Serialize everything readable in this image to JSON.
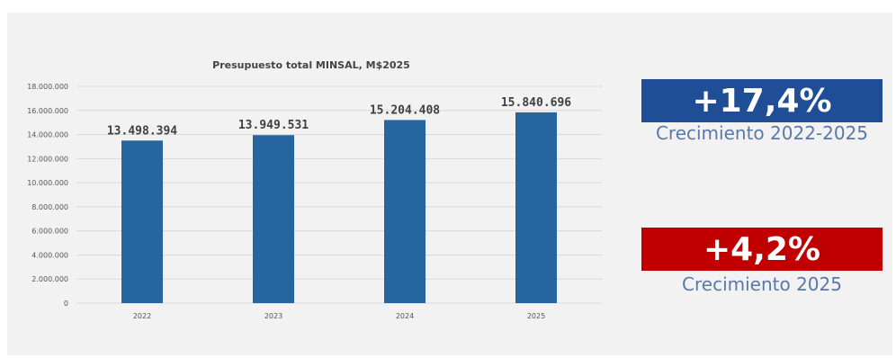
{
  "chart_data": {
    "type": "bar",
    "title": "Presupuesto total MINSAL, M$2025",
    "categories": [
      "2022",
      "2023",
      "2024",
      "2025"
    ],
    "values": [
      13498394,
      13949531,
      15204408,
      15840696
    ],
    "data_labels": [
      "13.498.394",
      "13.949.531",
      "15.204.408",
      "15.840.696"
    ],
    "ylim": [
      0,
      18000000
    ],
    "yticks": [
      "0",
      "2.000.000",
      "4.000.000",
      "6.000.000",
      "8.000.000",
      "10.000.000",
      "12.000.000",
      "14.000.000",
      "16.000.000",
      "18.000.000"
    ],
    "bar_color": "#2665a0",
    "grid": true
  },
  "kpis": {
    "growth_total_value": "+17,4%",
    "growth_total_label": "Crecimiento 2022-2025",
    "growth_total_color": "#1f4e96",
    "growth_year_value": "+4,2%",
    "growth_year_label": "Crecimiento 2025",
    "growth_year_color": "#c00000"
  }
}
